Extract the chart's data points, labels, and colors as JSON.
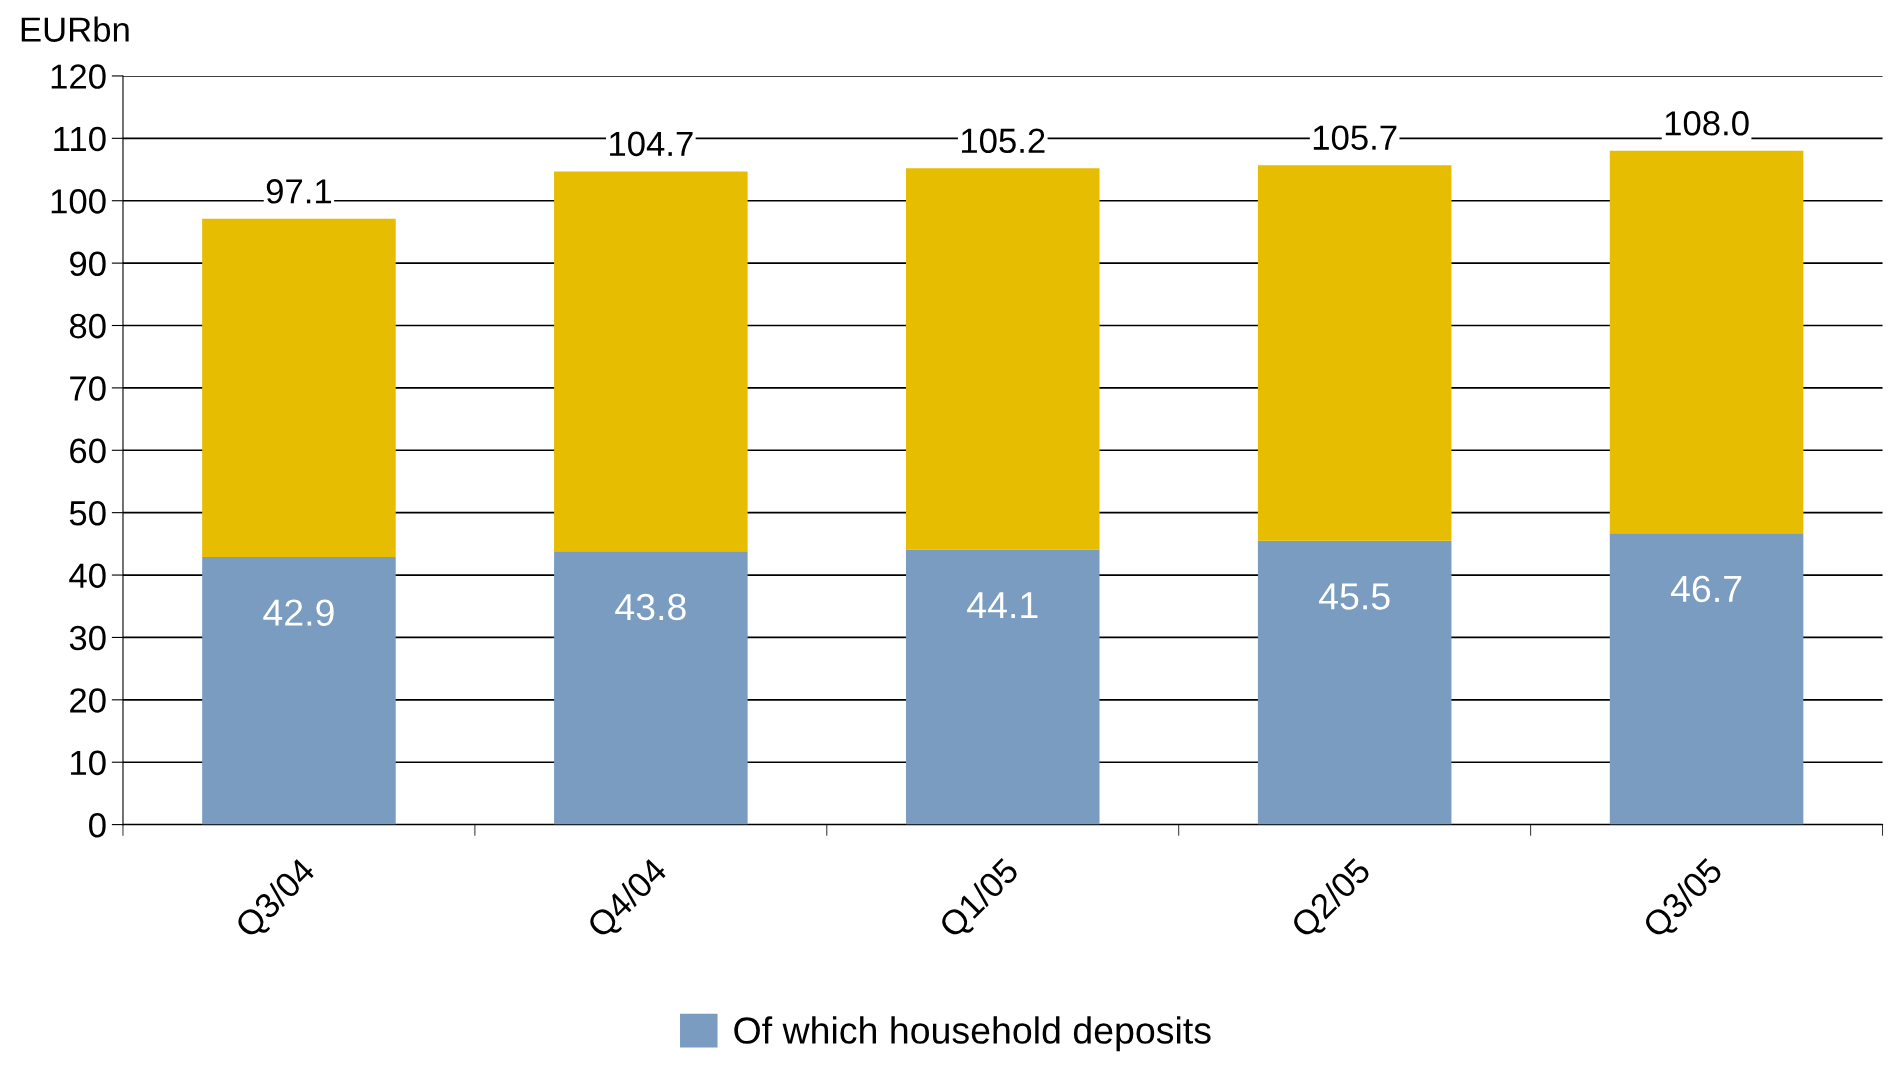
{
  "chart_data": {
    "type": "bar",
    "stacked": true,
    "ylabel": "EURbn",
    "categories": [
      "Q3/04",
      "Q4/04",
      "Q1/05",
      "Q2/05",
      "Q3/05"
    ],
    "series": [
      {
        "name": "Of which household deposits",
        "color": "#7a9cc0",
        "values": [
          42.9,
          43.8,
          44.1,
          45.5,
          46.7
        ],
        "value_labels": [
          "42.9",
          "43.8",
          "44.1",
          "45.5",
          "46.7"
        ]
      },
      {
        "color": "#e6bd00",
        "values": [
          54.2,
          60.9,
          61.1,
          60.2,
          61.3
        ]
      }
    ],
    "totals": [
      "97.1",
      "104.7",
      "105.2",
      "105.7",
      "108.0"
    ],
    "ylim": [
      0,
      120
    ],
    "yticks": [
      0,
      10,
      20,
      30,
      40,
      50,
      60,
      70,
      80,
      90,
      100,
      110,
      120
    ],
    "grid": "y",
    "legend": "bottom"
  }
}
